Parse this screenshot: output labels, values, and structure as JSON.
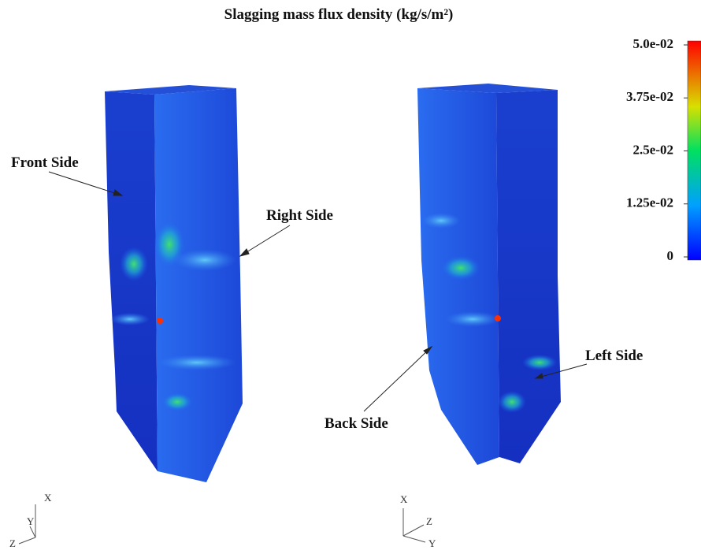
{
  "title": "Slagging mass flux density (kg/s/m²)",
  "colorbar": {
    "lim": [
      0,
      0.05
    ],
    "ticks": [
      0,
      {
        "value": 0.0125,
        "label": "1.25e-02"
      },
      {
        "value": 0.025,
        "label": "2.5e-02"
      },
      {
        "value": 0.0375,
        "label": "3.75e-02"
      },
      {
        "value": 0.05,
        "label": "5.0e-02"
      }
    ]
  },
  "annotations": [
    "Front Side",
    "Right Side",
    "Back Side",
    "Left Side"
  ],
  "triads": [
    {
      "x": "X",
      "y": "Y",
      "z": "Z"
    },
    {
      "x": "X",
      "y": "Y",
      "z": "Z"
    }
  ]
}
